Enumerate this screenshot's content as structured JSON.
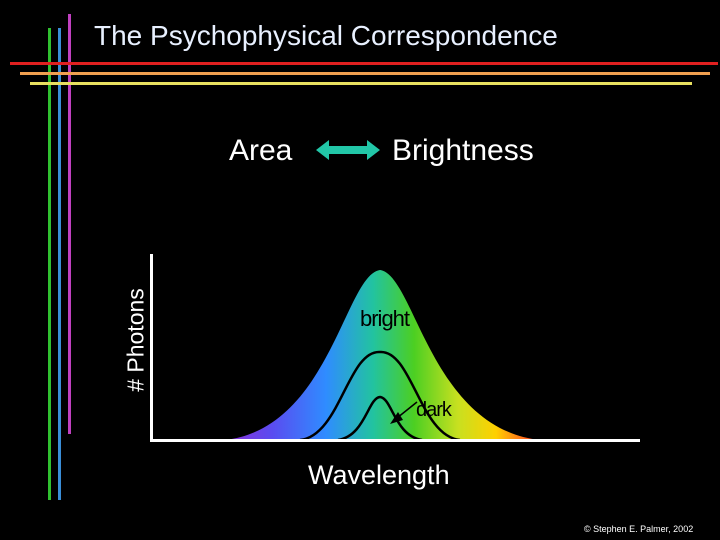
{
  "title": "The Psychophysical Correspondence",
  "relation": {
    "left": "Area",
    "right": "Brightness"
  },
  "axes": {
    "y_label": "# Photons",
    "x_label": "Wavelength"
  },
  "curves": {
    "outer_label": "bright",
    "inner_label": "dark"
  },
  "copyright": "© Stephen E. Palmer, 2002",
  "colors": {
    "background": "#000000",
    "title": "#e8f0ff",
    "arrow": "#22c7a8",
    "decor_red": "#e02020",
    "decor_orange": "#f0a050",
    "decor_yellow": "#e8e060",
    "decor_green": "#30c030",
    "decor_blue": "#3a8ed8",
    "decor_magenta": "#c040c0"
  }
}
